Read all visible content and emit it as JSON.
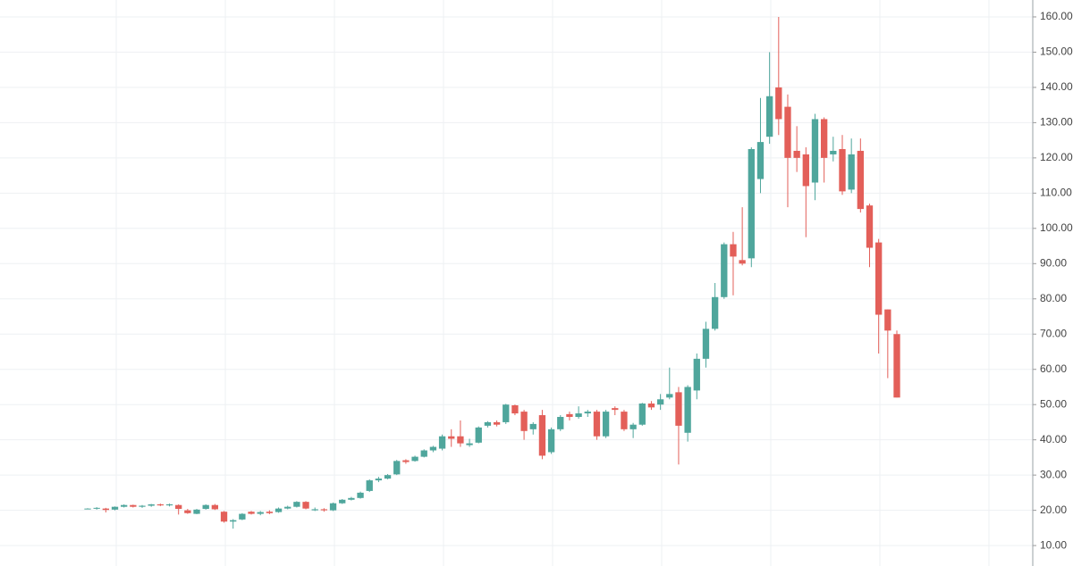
{
  "chart_data": {
    "type": "candlestick",
    "series": {
      "open": [
        20.4,
        20.5,
        20.5,
        20.2,
        21.0,
        21.5,
        21.0,
        21.3,
        21.7,
        21.4,
        21.5,
        20.0,
        19.0,
        20.4,
        21.5,
        19.6,
        16.8,
        17.4,
        19.6,
        19.0,
        19.6,
        19.5,
        20.5,
        21.0,
        22.4,
        20.0,
        20.3,
        20.0,
        22.0,
        23.0,
        23.5,
        25.5,
        28.5,
        29.0,
        30.2,
        34.2,
        34.0,
        35.2,
        37.0,
        37.5,
        41.0,
        41.0,
        38.5,
        39.2,
        44.0,
        45.0,
        45.0,
        49.8,
        48.0,
        43.0,
        47.0,
        36.5,
        43.0,
        47.3,
        46.5,
        47.5,
        48.0,
        41.0,
        49.0,
        48.0,
        43.0,
        44.3,
        50.3,
        50.0,
        52.0,
        53.5,
        42.0,
        54.0,
        63.0,
        71.5,
        80.5,
        95.5,
        91.0,
        91.5,
        114.0,
        126.0,
        140.0,
        134.5,
        122.0,
        121.0,
        113.0,
        131.0,
        121.0,
        122.5,
        111.0,
        122.0,
        106.5,
        96.0,
        77.0,
        70.0
      ],
      "high": [
        20.6,
        20.9,
        20.7,
        21.1,
        21.7,
        21.6,
        21.5,
        21.8,
        21.9,
        21.9,
        21.7,
        20.4,
        20.4,
        21.7,
        21.8,
        19.8,
        17.5,
        19.2,
        19.8,
        19.8,
        20.0,
        20.8,
        21.3,
        22.6,
        22.6,
        20.8,
        20.6,
        22.2,
        23.2,
        23.8,
        25.3,
        28.8,
        29.5,
        30.3,
        34.3,
        34.5,
        35.5,
        37.3,
        38.3,
        41.5,
        43.0,
        45.5,
        40.3,
        43.8,
        45.3,
        45.5,
        50.2,
        50.0,
        48.5,
        45.0,
        48.5,
        43.5,
        47.0,
        48.0,
        49.5,
        48.5,
        48.5,
        48.5,
        49.5,
        48.5,
        44.8,
        50.5,
        51.0,
        53.0,
        60.5,
        55.0,
        55.5,
        64.5,
        73.5,
        84.5,
        96.0,
        99.0,
        106.0,
        123.0,
        137.0,
        150.0,
        160.0,
        138.0,
        129.0,
        123.0,
        132.5,
        131.5,
        126.0,
        126.5,
        125.5,
        125.5,
        107.0,
        97.0,
        77.0,
        71.0
      ],
      "low": [
        20.3,
        20.2,
        19.4,
        20.0,
        20.8,
        20.8,
        20.7,
        21.0,
        21.2,
        21.1,
        18.8,
        19.0,
        18.9,
        20.2,
        20.1,
        16.5,
        14.8,
        17.2,
        18.8,
        18.6,
        18.9,
        19.3,
        20.3,
        20.8,
        20.3,
        19.8,
        19.6,
        19.8,
        21.8,
        22.8,
        23.3,
        25.2,
        28.0,
        28.8,
        30.0,
        33.2,
        33.8,
        35.0,
        36.5,
        37.0,
        38.0,
        38.0,
        38.0,
        39.0,
        43.5,
        43.8,
        44.5,
        47.0,
        40.0,
        41.5,
        34.5,
        36.0,
        42.5,
        45.5,
        46.0,
        46.5,
        40.0,
        40.5,
        47.0,
        42.5,
        40.5,
        44.0,
        48.5,
        48.5,
        51.5,
        33.0,
        39.5,
        51.5,
        60.5,
        71.0,
        80.0,
        81.0,
        89.5,
        89.0,
        110.0,
        124.0,
        126.5,
        106.0,
        116.0,
        97.5,
        108.0,
        113.0,
        119.0,
        109.5,
        110.0,
        104.5,
        89.0,
        64.5,
        57.5,
        52.0
      ],
      "close": [
        20.5,
        20.7,
        20.1,
        21.0,
        21.5,
        21.0,
        21.3,
        21.7,
        21.4,
        21.7,
        20.4,
        19.2,
        20.2,
        21.5,
        20.3,
        16.8,
        17.2,
        19.0,
        19.0,
        19.5,
        19.2,
        20.5,
        21.0,
        22.4,
        20.5,
        20.3,
        20.0,
        22.0,
        23.0,
        23.5,
        25.0,
        28.5,
        29.0,
        30.0,
        34.0,
        33.7,
        35.2,
        37.0,
        38.0,
        41.0,
        40.3,
        39.0,
        39.0,
        43.5,
        45.0,
        44.3,
        50.0,
        47.5,
        42.5,
        44.5,
        35.5,
        43.0,
        46.5,
        46.5,
        47.5,
        48.0,
        41.0,
        48.0,
        48.5,
        43.0,
        44.3,
        50.3,
        49.2,
        51.5,
        53.0,
        44.0,
        55.0,
        63.0,
        71.5,
        80.5,
        95.5,
        92.0,
        90.0,
        122.5,
        124.5,
        137.5,
        131.0,
        120.0,
        120.0,
        112.0,
        131.0,
        120.0,
        122.0,
        110.5,
        121.0,
        105.5,
        94.5,
        75.5,
        71.0,
        52.0
      ]
    },
    "up_color": "#4fa69c",
    "down_color": "#e35f59",
    "ylim": [
      4.2,
      164.8
    ],
    "yticks": [
      {
        "value": 10,
        "label": "10.00"
      },
      {
        "value": 20,
        "label": "20.00"
      },
      {
        "value": 30,
        "label": "30.00"
      },
      {
        "value": 40,
        "label": "40.00"
      },
      {
        "value": 50,
        "label": "50.00"
      },
      {
        "value": 60,
        "label": "60.00"
      },
      {
        "value": 70,
        "label": "70.00"
      },
      {
        "value": 80,
        "label": "80.00"
      },
      {
        "value": 90,
        "label": "90.00"
      },
      {
        "value": 100,
        "label": "100.00"
      },
      {
        "value": 110,
        "label": "110.00"
      },
      {
        "value": 120,
        "label": "120.00"
      },
      {
        "value": 130,
        "label": "130.00"
      },
      {
        "value": 140,
        "label": "140.00"
      },
      {
        "value": 150,
        "label": "150.00"
      },
      {
        "value": 160,
        "label": "160.00"
      }
    ],
    "grid": true,
    "axis_side": "right"
  }
}
